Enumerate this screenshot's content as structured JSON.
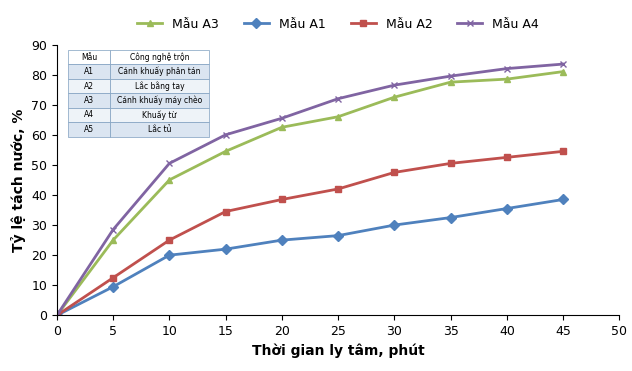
{
  "chart_data": {
    "type": "line",
    "x_label": "Thời gian ly tâm, phút",
    "y_label": "Tỷ lệ tách nước, %",
    "x": [
      0,
      5,
      10,
      15,
      20,
      25,
      30,
      35,
      40,
      45
    ],
    "series": [
      {
        "name": "Mẫu A3",
        "color": "#9bbb59",
        "marker": "^",
        "values": [
          0,
          25,
          45,
          54.5,
          62.5,
          66,
          72.5,
          77.5,
          78.5,
          81
        ]
      },
      {
        "name": "Mẫu A1",
        "color": "#4f81bd",
        "marker": "D",
        "values": [
          0,
          9.5,
          20,
          22,
          25,
          26.5,
          30,
          32.5,
          35.5,
          38.5
        ]
      },
      {
        "name": "Mẫu A2",
        "color": "#c0504d",
        "marker": "s",
        "values": [
          0,
          12.5,
          25,
          34.5,
          38.5,
          42,
          47.5,
          50.5,
          52.5,
          54.5
        ]
      },
      {
        "name": "Mẫu A4",
        "color": "#8064a2",
        "marker": "x",
        "values": [
          0,
          28.5,
          50.5,
          60,
          65.5,
          72,
          76.5,
          79.5,
          82,
          83.5
        ]
      }
    ],
    "xlim": [
      0,
      50
    ],
    "xticks": [
      0,
      5,
      10,
      15,
      20,
      25,
      30,
      35,
      40,
      45,
      50
    ],
    "ylim": [
      0,
      90
    ],
    "yticks": [
      0,
      10,
      20,
      30,
      40,
      50,
      60,
      70,
      80,
      90
    ],
    "grid": false,
    "legend": "upper center"
  },
  "table": {
    "header": [
      "Mẫu",
      "Công nghệ trộn"
    ],
    "rows": [
      [
        "A1",
        "Cánh khuấy phân tán"
      ],
      [
        "A2",
        "Lắc bằng tay"
      ],
      [
        "A3",
        "Cánh khuấy máy chèo"
      ],
      [
        "A4",
        "Khuấy từ"
      ],
      [
        "A5",
        "Lắc tủ"
      ]
    ]
  }
}
